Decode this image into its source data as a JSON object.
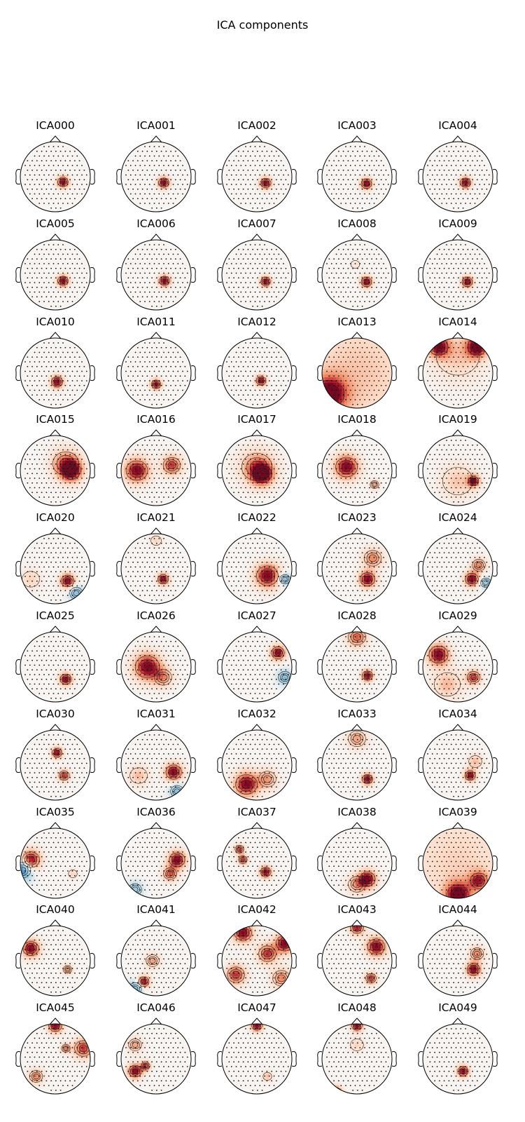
{
  "title": "ICA components",
  "chart_data": {
    "type": "heatmap",
    "title": "ICA components",
    "colormap": "RdBu_r",
    "palette": {
      "neg_strong": "#2166ac",
      "neg_mid": "#92c5de",
      "neutral": "#f7f4f2",
      "pos_light": "#fddbc7",
      "pos_mid": "#ef8a62",
      "pos_strong": "#b2182b",
      "pos_max": "#67001f"
    },
    "layout": {
      "rows": 10,
      "cols": 5
    },
    "components": [
      {
        "name": "ICA000",
        "peaks": [
          [
            0.22,
            0.15,
            1.0,
            0.12
          ]
        ]
      },
      {
        "name": "ICA001",
        "peaks": [
          [
            0.22,
            0.17,
            1.0,
            0.12
          ]
        ]
      },
      {
        "name": "ICA002",
        "peaks": [
          [
            0.25,
            0.18,
            1.0,
            0.12
          ]
        ]
      },
      {
        "name": "ICA003",
        "peaks": [
          [
            0.27,
            0.2,
            1.0,
            0.12
          ]
        ]
      },
      {
        "name": "ICA004",
        "peaks": [
          [
            0.22,
            0.17,
            1.0,
            0.12
          ]
        ]
      },
      {
        "name": "ICA005",
        "peaks": [
          [
            0.22,
            0.17,
            1.0,
            0.12
          ]
        ]
      },
      {
        "name": "ICA006",
        "peaks": [
          [
            0.24,
            0.17,
            1.0,
            0.12
          ]
        ]
      },
      {
        "name": "ICA007",
        "peaks": [
          [
            0.25,
            0.19,
            1.0,
            0.11
          ]
        ]
      },
      {
        "name": "ICA008",
        "peaks": [
          [
            0.27,
            0.2,
            1.0,
            0.12
          ],
          [
            -0.05,
            -0.3,
            0.2,
            0.1
          ]
        ]
      },
      {
        "name": "ICA009",
        "peaks": [
          [
            0.27,
            0.2,
            1.0,
            0.12
          ]
        ]
      },
      {
        "name": "ICA010",
        "peaks": [
          [
            0.05,
            0.25,
            1.0,
            0.13
          ]
        ]
      },
      {
        "name": "ICA011",
        "peaks": [
          [
            0.0,
            0.32,
            1.0,
            0.11
          ]
        ]
      },
      {
        "name": "ICA012",
        "peaks": [
          [
            0.12,
            0.22,
            1.0,
            0.11
          ]
        ]
      },
      {
        "name": "ICA013",
        "peaks": [
          [
            -0.8,
            0.6,
            1.0,
            0.35
          ],
          [
            0.0,
            0.0,
            0.35,
            1.2
          ]
        ]
      },
      {
        "name": "ICA014",
        "peaks": [
          [
            -0.55,
            -0.75,
            0.9,
            0.22
          ],
          [
            0.55,
            -0.75,
            1.0,
            0.22
          ],
          [
            0.0,
            -0.5,
            0.35,
            0.5
          ]
        ]
      },
      {
        "name": "ICA015",
        "peaks": [
          [
            0.45,
            0.0,
            1.0,
            0.22
          ],
          [
            0.3,
            -0.2,
            0.6,
            0.3
          ]
        ]
      },
      {
        "name": "ICA016",
        "peaks": [
          [
            -0.55,
            0.0,
            1.0,
            0.25
          ],
          [
            0.45,
            -0.15,
            0.8,
            0.2
          ]
        ]
      },
      {
        "name": "ICA017",
        "peaks": [
          [
            0.15,
            0.1,
            1.0,
            0.22
          ],
          [
            0.0,
            -0.1,
            0.6,
            0.35
          ]
        ]
      },
      {
        "name": "ICA018",
        "peaks": [
          [
            -0.3,
            -0.1,
            1.0,
            0.25
          ],
          [
            0.5,
            0.4,
            0.5,
            0.1
          ]
        ]
      },
      {
        "name": "ICA019",
        "peaks": [
          [
            0.45,
            0.3,
            1.0,
            0.12
          ],
          [
            0.0,
            0.3,
            0.35,
            0.35
          ]
        ]
      },
      {
        "name": "ICA020",
        "peaks": [
          [
            0.35,
            0.35,
            1.0,
            0.15
          ],
          [
            -0.7,
            0.3,
            0.3,
            0.2
          ],
          [
            0.6,
            0.7,
            -0.6,
            0.15
          ]
        ]
      },
      {
        "name": "ICA021",
        "peaks": [
          [
            0.2,
            0.3,
            1.0,
            0.12
          ],
          [
            0.0,
            -0.8,
            0.3,
            0.12
          ]
        ]
      },
      {
        "name": "ICA022",
        "peaks": [
          [
            0.3,
            0.2,
            1.0,
            0.25
          ],
          [
            0.8,
            0.3,
            -0.7,
            0.12
          ]
        ]
      },
      {
        "name": "ICA023",
        "peaks": [
          [
            0.3,
            0.3,
            1.0,
            0.17
          ],
          [
            0.45,
            -0.3,
            0.6,
            0.2
          ]
        ]
      },
      {
        "name": "ICA024",
        "peaks": [
          [
            0.4,
            0.3,
            1.0,
            0.15
          ],
          [
            0.6,
            -0.1,
            0.6,
            0.15
          ],
          [
            0.8,
            0.4,
            -0.5,
            0.12
          ]
        ]
      },
      {
        "name": "ICA025",
        "peaks": [
          [
            0.3,
            0.35,
            1.0,
            0.13
          ]
        ]
      },
      {
        "name": "ICA026",
        "peaks": [
          [
            -0.25,
            0.0,
            1.0,
            0.28
          ],
          [
            0.2,
            0.3,
            0.5,
            0.2
          ]
        ]
      },
      {
        "name": "ICA027",
        "peaks": [
          [
            0.6,
            -0.4,
            1.0,
            0.15
          ],
          [
            0.8,
            0.3,
            -0.6,
            0.15
          ]
        ]
      },
      {
        "name": "ICA028",
        "peaks": [
          [
            0.0,
            -0.85,
            0.7,
            0.2
          ],
          [
            0.3,
            0.25,
            1.0,
            0.12
          ]
        ]
      },
      {
        "name": "ICA029",
        "peaks": [
          [
            -0.55,
            -0.35,
            1.0,
            0.22
          ],
          [
            0.45,
            0.3,
            0.8,
            0.15
          ],
          [
            -0.3,
            0.5,
            0.4,
            0.3
          ]
        ]
      },
      {
        "name": "ICA030",
        "peaks": [
          [
            0.05,
            -0.35,
            1.0,
            0.11
          ],
          [
            0.25,
            0.3,
            0.8,
            0.12
          ]
        ]
      },
      {
        "name": "ICA031",
        "peaks": [
          [
            0.5,
            0.2,
            1.0,
            0.18
          ],
          [
            -0.5,
            0.3,
            0.4,
            0.2
          ],
          [
            0.6,
            0.75,
            -0.6,
            0.15
          ]
        ]
      },
      {
        "name": "ICA032",
        "peaks": [
          [
            -0.3,
            0.55,
            1.0,
            0.25
          ],
          [
            0.3,
            0.4,
            0.5,
            0.2
          ]
        ]
      },
      {
        "name": "ICA033",
        "peaks": [
          [
            0.3,
            0.4,
            1.0,
            0.12
          ],
          [
            0.0,
            -0.75,
            0.5,
            0.2
          ]
        ]
      },
      {
        "name": "ICA034",
        "peaks": [
          [
            0.35,
            0.3,
            1.0,
            0.12
          ],
          [
            0.5,
            -0.1,
            0.4,
            0.15
          ]
        ]
      },
      {
        "name": "ICA035",
        "peaks": [
          [
            -0.7,
            -0.1,
            1.0,
            0.2
          ],
          [
            -0.95,
            0.2,
            -1.0,
            0.2
          ],
          [
            0.5,
            0.3,
            0.3,
            0.1
          ]
        ]
      },
      {
        "name": "ICA036",
        "peaks": [
          [
            0.6,
            -0.1,
            1.0,
            0.18
          ],
          [
            0.4,
            0.3,
            0.7,
            0.15
          ],
          [
            -0.6,
            0.75,
            -0.5,
            0.15
          ]
        ]
      },
      {
        "name": "ICA037",
        "peaks": [
          [
            -0.5,
            -0.4,
            0.8,
            0.1
          ],
          [
            -0.4,
            -0.1,
            0.8,
            0.1
          ],
          [
            0.25,
            0.25,
            1.0,
            0.12
          ]
        ]
      },
      {
        "name": "ICA038",
        "peaks": [
          [
            0.3,
            0.45,
            1.0,
            0.18
          ],
          [
            0.0,
            0.6,
            0.5,
            0.2
          ]
        ]
      },
      {
        "name": "ICA039",
        "peaks": [
          [
            0.0,
            0.9,
            1.0,
            0.25
          ],
          [
            0.6,
            0.5,
            0.7,
            0.2
          ],
          [
            0.0,
            0.0,
            0.3,
            1.0
          ]
        ]
      },
      {
        "name": "ICA040",
        "peaks": [
          [
            -0.7,
            -0.35,
            1.0,
            0.18
          ],
          [
            0.35,
            0.25,
            0.6,
            0.1
          ]
        ]
      },
      {
        "name": "ICA041",
        "peaks": [
          [
            -0.35,
            0.6,
            1.0,
            0.12
          ],
          [
            -0.1,
            0.0,
            0.5,
            0.15
          ],
          [
            -0.6,
            0.8,
            -0.7,
            0.15
          ]
        ]
      },
      {
        "name": "ICA042",
        "peaks": [
          [
            -0.4,
            -0.8,
            1.0,
            0.2
          ],
          [
            0.8,
            -0.5,
            1.0,
            0.2
          ],
          [
            -0.6,
            0.4,
            0.8,
            0.2
          ],
          [
            0.3,
            -0.2,
            0.8,
            0.2
          ],
          [
            0.7,
            0.5,
            0.6,
            0.2
          ]
        ]
      },
      {
        "name": "ICA043",
        "peaks": [
          [
            0.55,
            -0.4,
            1.0,
            0.2
          ],
          [
            0.0,
            -0.95,
            0.9,
            0.15
          ],
          [
            0.4,
            0.5,
            0.8,
            0.12
          ]
        ]
      },
      {
        "name": "ICA044",
        "peaks": [
          [
            0.45,
            0.25,
            1.0,
            0.15
          ],
          [
            0.55,
            -0.2,
            0.6,
            0.15
          ]
        ]
      },
      {
        "name": "ICA045",
        "peaks": [
          [
            0.0,
            -0.95,
            1.0,
            0.15
          ],
          [
            0.8,
            -0.3,
            0.8,
            0.2
          ],
          [
            -0.55,
            0.5,
            0.6,
            0.15
          ],
          [
            0.3,
            -0.3,
            0.6,
            0.1
          ]
        ]
      },
      {
        "name": "ICA046",
        "peaks": [
          [
            -0.6,
            0.35,
            1.0,
            0.15
          ],
          [
            -0.3,
            0.2,
            0.8,
            0.1
          ],
          [
            -0.6,
            -0.4,
            0.5,
            0.15
          ]
        ]
      },
      {
        "name": "ICA047",
        "peaks": [
          [
            0.0,
            -0.95,
            1.0,
            0.12
          ],
          [
            0.3,
            0.5,
            0.4,
            0.1
          ]
        ]
      },
      {
        "name": "ICA048",
        "peaks": [
          [
            0.0,
            -0.95,
            1.0,
            0.12
          ],
          [
            -0.6,
            0.95,
            1.0,
            0.12
          ],
          [
            0.0,
            -0.4,
            0.3,
            0.15
          ]
        ]
      },
      {
        "name": "ICA049",
        "peaks": [
          [
            0.15,
            0.35,
            1.0,
            0.12
          ]
        ]
      }
    ]
  }
}
